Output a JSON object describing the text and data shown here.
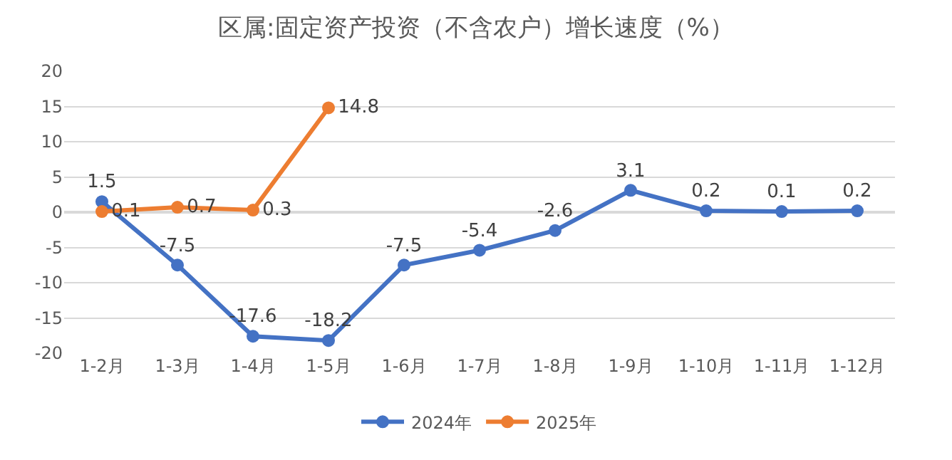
{
  "chart_data": {
    "type": "line",
    "title": "区属:固定资产投资（不含农户）增长速度（%）",
    "categories": [
      "1-2月",
      "1-3月",
      "1-4月",
      "1-5月",
      "1-6月",
      "1-7月",
      "1-8月",
      "1-9月",
      "1-10月",
      "1-11月",
      "1-12月"
    ],
    "series": [
      {
        "name": "2024年",
        "color": "#4472c4",
        "values": [
          1.5,
          -7.5,
          -17.6,
          -18.2,
          -7.5,
          -5.4,
          -2.6,
          3.1,
          0.2,
          0.1,
          0.2
        ]
      },
      {
        "name": "2025年",
        "color": "#ed7d31",
        "values": [
          0.1,
          0.7,
          0.3,
          14.8,
          null,
          null,
          null,
          null,
          null,
          null,
          null
        ]
      }
    ],
    "ylim": [
      -20,
      20
    ],
    "yticks": [
      -20,
      -15,
      -10,
      -5,
      0,
      5,
      10,
      15,
      20
    ],
    "grid": "y",
    "legend": "bottom",
    "marker": "circle",
    "line_style": "solid",
    "data_labels": true
  }
}
